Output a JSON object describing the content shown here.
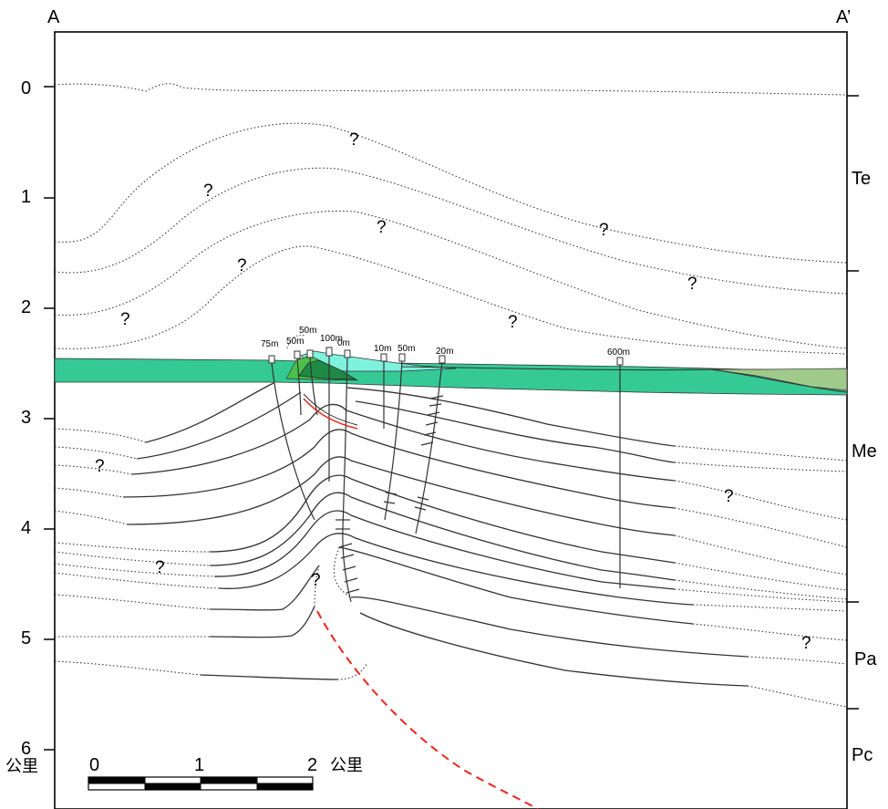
{
  "section": {
    "start_label": "A",
    "end_label": "A’"
  },
  "depth_axis": {
    "ticks": [
      "0",
      "1",
      "2",
      "3",
      "4",
      "5",
      "6"
    ],
    "unit": "公里"
  },
  "formations": [
    {
      "code": "Te"
    },
    {
      "code": "Me"
    },
    {
      "code": "Pa"
    },
    {
      "code": "Pc"
    }
  ],
  "well_depth_labels": [
    "75m",
    "50m",
    "50m",
    "100m",
    "0m",
    "10m",
    "50m",
    "20m",
    "600m"
  ],
  "unknown_marker": "?",
  "scale_bar": {
    "ticks": [
      "0",
      "1",
      "2"
    ],
    "unit": "公里"
  },
  "colors": {
    "sea_green": "#35c996",
    "light_cyan": "#7ff2dd",
    "dark_green": "#1f8a45",
    "mid_green": "#4cc04a",
    "olive_green": "#9fca8a",
    "fault_red": "#e8281e",
    "line": "#333333"
  }
}
